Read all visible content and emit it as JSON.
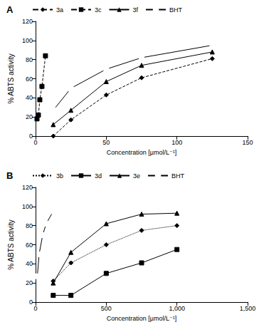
{
  "chart_data": [
    {
      "type": "line",
      "title": "A",
      "x_label": "Concentration [µmol/L⁻¹]",
      "y_label": "% ABTS activity",
      "xlim": [
        0,
        150
      ],
      "xticks": [
        0,
        50,
        100,
        150
      ],
      "ylim": [
        0,
        120
      ],
      "yticks": [
        0,
        20,
        40,
        60,
        80,
        100,
        120
      ],
      "grid": false,
      "legend": "top",
      "series": [
        {
          "name": "3a",
          "color": "#000000",
          "marker": "diamond",
          "line_style": "dashed",
          "x": [
            12.5,
            25,
            50,
            75,
            125
          ],
          "values": [
            0,
            17,
            43,
            61,
            81
          ]
        },
        {
          "name": "3c",
          "color": "#000000",
          "marker": "square",
          "line_style": "dashed",
          "x": [
            1,
            2,
            3,
            4.5,
            7
          ],
          "values": [
            18,
            22,
            38,
            52,
            84
          ]
        },
        {
          "name": "3f",
          "color": "#000000",
          "marker": "triangle",
          "line_style": "solid",
          "x": [
            12.5,
            25,
            50,
            75,
            125
          ],
          "values": [
            12,
            27,
            57,
            74,
            88
          ]
        },
        {
          "name": "BHT",
          "color": "#000000",
          "marker": "open_square",
          "line_style": "solid",
          "x": [
            12.5,
            25,
            50,
            75,
            125
          ],
          "values": [
            27,
            50,
            70,
            82,
            95
          ]
        }
      ]
    },
    {
      "type": "line",
      "title": "B",
      "x_label": "Concentration [µmol/L⁻¹]",
      "y_label": "% ABTS activity",
      "xlim": [
        0,
        1500
      ],
      "xticks": [
        0,
        500,
        1000,
        1500
      ],
      "ylim": [
        0,
        120
      ],
      "yticks": [
        0,
        20,
        40,
        60,
        80,
        100,
        120
      ],
      "grid": false,
      "legend": "top",
      "series": [
        {
          "name": "3b",
          "color": "#000000",
          "marker": "diamond",
          "line_style": "dotted",
          "x": [
            125,
            250,
            500,
            750,
            1000
          ],
          "values": [
            22,
            41,
            60,
            75,
            80
          ]
        },
        {
          "name": "3d",
          "color": "#000000",
          "marker": "square",
          "line_style": "solid",
          "x": [
            125,
            250,
            500,
            750,
            1000
          ],
          "values": [
            7,
            7,
            30,
            41,
            55
          ]
        },
        {
          "name": "3e",
          "color": "#000000",
          "marker": "triangle",
          "line_style": "solid",
          "x": [
            125,
            250,
            500,
            750,
            1000
          ],
          "values": [
            20,
            52,
            82,
            92,
            93
          ]
        },
        {
          "name": "BHT",
          "color": "#000000",
          "marker": "open_square",
          "line_style": "solid",
          "x": [
            12.5,
            25,
            50,
            75,
            125
          ],
          "values": [
            27,
            50,
            70,
            82,
            95
          ]
        }
      ]
    }
  ]
}
